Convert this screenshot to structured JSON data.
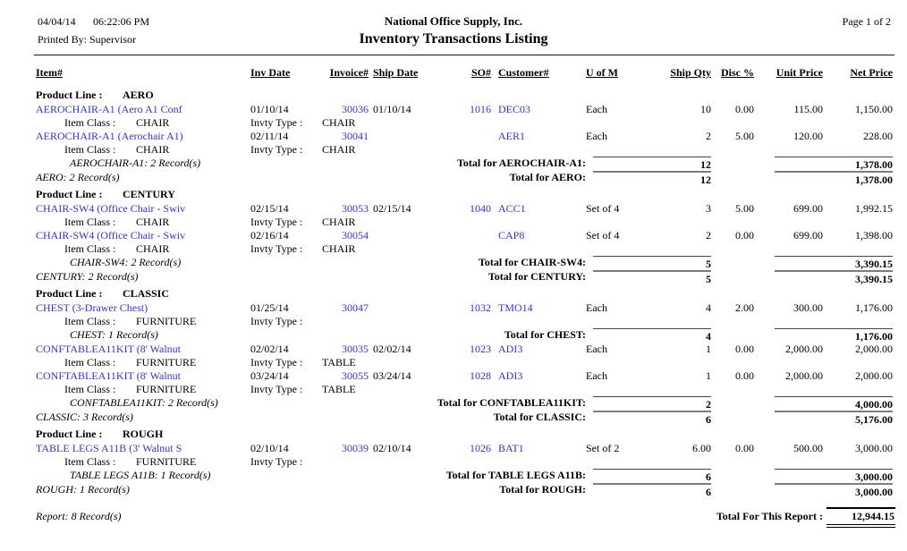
{
  "ui": {
    "link_color": "#3333cc",
    "text_color": "#000000",
    "rule_color": "#1a1a1a"
  },
  "header": {
    "printed_date": "04/04/14",
    "printed_time": "06:22:06 PM",
    "printed_by": "Printed By: Supervisor",
    "company": "National Office Supply, Inc.",
    "title": "Inventory Transactions Listing",
    "page_label": "Page 1 of 2"
  },
  "columns": {
    "item": "Item#",
    "inv_date": "Inv Date",
    "invoice": "Invoice#",
    "ship_date": "Ship Date",
    "so": "SO#",
    "customer": "Customer#",
    "uom": "U of M",
    "ship_qty": "Ship Qty",
    "disc": "Disc %",
    "unit_price": "Unit Price",
    "net_price": "Net Price"
  },
  "labels": {
    "product_line": "Product Line :",
    "item_class": "Item Class :",
    "invty_type": "Invty Type :"
  },
  "groups": [
    {
      "product_line": "AERO",
      "items": [
        {
          "rows": [
            {
              "item": "AEROCHAIR-A1 (Aero A1 Conf",
              "inv_date": "01/10/14",
              "invoice": "30036",
              "ship_date": "01/10/14",
              "so": "1016",
              "customer": "DEC03",
              "uom": "Each",
              "qty": "10",
              "disc": "0.00",
              "unit": "115.00",
              "net": "1,150.00",
              "item_class": "CHAIR",
              "invty_type": "CHAIR"
            },
            {
              "item": "AEROCHAIR-A1 (Aerochair A1)",
              "inv_date": "02/11/14",
              "invoice": "30041",
              "ship_date": "",
              "so": "",
              "customer": "AER1",
              "uom": "Each",
              "qty": "2",
              "disc": "5.00",
              "unit": "120.00",
              "net": "228.00",
              "item_class": "CHAIR",
              "invty_type": "CHAIR"
            }
          ],
          "total": {
            "records": "AEROCHAIR-A1: 2 Record(s)",
            "label": "Total for AEROCHAIR-A1:",
            "qty": "12",
            "net": "1,378.00"
          }
        }
      ],
      "total": {
        "records": "AERO: 2 Record(s)",
        "label": "Total for AERO:",
        "qty": "12",
        "net": "1,378.00"
      }
    },
    {
      "product_line": "CENTURY",
      "items": [
        {
          "rows": [
            {
              "item": "CHAIR-SW4 (Office Chair - Swiv",
              "inv_date": "02/15/14",
              "invoice": "30053",
              "ship_date": "02/15/14",
              "so": "1040",
              "customer": "ACC1",
              "uom": "Set of 4",
              "qty": "3",
              "disc": "5.00",
              "unit": "699.00",
              "net": "1,992.15",
              "item_class": "CHAIR",
              "invty_type": "CHAIR"
            },
            {
              "item": "CHAIR-SW4 (Office Chair - Swiv",
              "inv_date": "02/16/14",
              "invoice": "30054",
              "ship_date": "",
              "so": "",
              "customer": "CAP8",
              "uom": "Set of 4",
              "qty": "2",
              "disc": "0.00",
              "unit": "699.00",
              "net": "1,398.00",
              "item_class": "CHAIR",
              "invty_type": "CHAIR"
            }
          ],
          "total": {
            "records": "CHAIR-SW4: 2 Record(s)",
            "label": "Total for CHAIR-SW4:",
            "qty": "5",
            "net": "3,390.15"
          }
        }
      ],
      "total": {
        "records": "CENTURY: 2 Record(s)",
        "label": "Total for CENTURY:",
        "qty": "5",
        "net": "3,390.15"
      }
    },
    {
      "product_line": "CLASSIC",
      "items": [
        {
          "rows": [
            {
              "item": "CHEST (3-Drawer Chest)",
              "inv_date": "01/25/14",
              "invoice": "30047",
              "ship_date": "",
              "so": "1032",
              "customer": "TMO14",
              "uom": "Each",
              "qty": "4",
              "disc": "2.00",
              "unit": "300.00",
              "net": "1,176.00",
              "item_class": "FURNITURE",
              "invty_type": ""
            }
          ],
          "total": {
            "records": "CHEST: 1 Record(s)",
            "label": "Total for CHEST:",
            "qty": "4",
            "net": "1,176.00"
          }
        },
        {
          "rows": [
            {
              "item": "CONFTABLEA11KIT (8' Walnut",
              "inv_date": "02/02/14",
              "invoice": "30035",
              "ship_date": "02/02/14",
              "so": "1023",
              "customer": "ADI3",
              "uom": "Each",
              "qty": "1",
              "disc": "0.00",
              "unit": "2,000.00",
              "net": "2,000.00",
              "item_class": "FURNITURE",
              "invty_type": "TABLE"
            },
            {
              "item": "CONFTABLEA11KIT (8' Walnut",
              "inv_date": "03/24/14",
              "invoice": "30055",
              "ship_date": "03/24/14",
              "so": "1028",
              "customer": "ADI3",
              "uom": "Each",
              "qty": "1",
              "disc": "0.00",
              "unit": "2,000.00",
              "net": "2,000.00",
              "item_class": "FURNITURE",
              "invty_type": "TABLE"
            }
          ],
          "total": {
            "records": "CONFTABLEA11KIT: 2 Record(s)",
            "label": "Total for CONFTABLEA11KIT:",
            "qty": "2",
            "net": "4,000.00"
          }
        }
      ],
      "total": {
        "records": "CLASSIC: 3 Record(s)",
        "label": "Total for CLASSIC:",
        "qty": "6",
        "net": "5,176.00"
      }
    },
    {
      "product_line": "ROUGH",
      "items": [
        {
          "rows": [
            {
              "item": "TABLE LEGS A11B (3' Walnut S",
              "inv_date": "02/10/14",
              "invoice": "30039",
              "ship_date": "02/10/14",
              "so": "1026",
              "customer": "BAT1",
              "uom": "Set of 2",
              "qty": "6.00",
              "disc": "0.00",
              "unit": "500.00",
              "net": "3,000.00",
              "item_class": "FURNITURE",
              "invty_type": ""
            }
          ],
          "total": {
            "records": "TABLE LEGS A11B: 1 Record(s)",
            "label": "Total for TABLE LEGS A11B:",
            "qty": "6",
            "net": "3,000.00"
          }
        }
      ],
      "total": {
        "records": "ROUGH: 1 Record(s)",
        "label": "Total for ROUGH:",
        "qty": "6",
        "net": "3,000.00"
      }
    }
  ],
  "footer": {
    "records": "Report: 8 Record(s)",
    "total_label": "Total For This Report :",
    "total_value": "12,944.15"
  }
}
